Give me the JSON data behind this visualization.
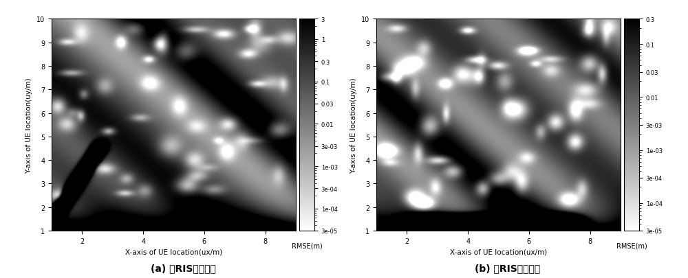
{
  "title_a": "(a) 单RIS辅助定位",
  "title_b": "(b) 双RIS辅助定位",
  "xlabel": "X-axis of UE location(ux/m)",
  "ylabel": "Y-axis of UE location(uy/m)",
  "colorbar_label": "RMSE(m)",
  "xlim": [
    1,
    9
  ],
  "ylim": [
    1,
    10
  ],
  "xticks": [
    2,
    4,
    6,
    8
  ],
  "yticks": [
    1,
    2,
    3,
    4,
    5,
    6,
    7,
    8,
    9,
    10
  ],
  "vmin_a": 3e-05,
  "vmax_a": 3.0,
  "vmin_b": 3e-05,
  "vmax_b": 0.3,
  "colorbar_ticks_a": [
    3e-05,
    0.0001,
    0.0003,
    0.001,
    0.003,
    0.01,
    0.03,
    0.1,
    0.3,
    1,
    3
  ],
  "colorbar_ticklabels_a": [
    "3e-05",
    "1e-04",
    "3e-04",
    "1e-03",
    "3e-03",
    "0.01",
    "0.03",
    "0.1",
    "0.3",
    "1",
    "3"
  ],
  "colorbar_ticks_b": [
    3e-05,
    0.0001,
    0.0003,
    0.001,
    0.003,
    0.01,
    0.03,
    0.1,
    0.3
  ],
  "colorbar_ticklabels_b": [
    "3e-05",
    "1e-04",
    "3e-04",
    "1e-03",
    "3e-03",
    "0.01",
    "0.03",
    "0.1",
    "0.3"
  ],
  "background_color": "#ffffff",
  "figure_width": 10.0,
  "figure_height": 4.06
}
